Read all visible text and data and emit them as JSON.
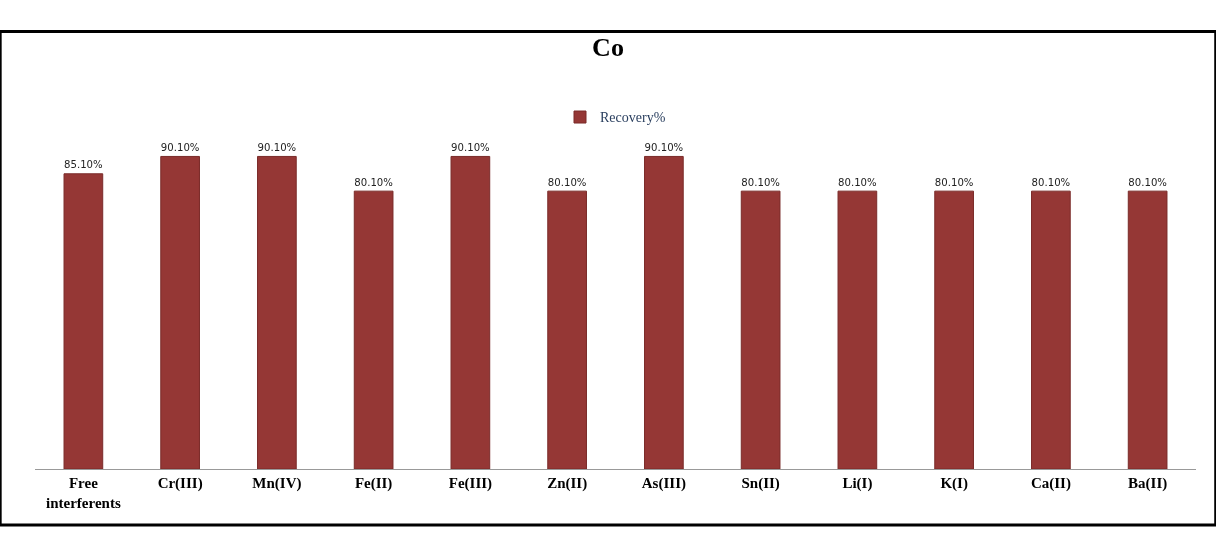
{
  "chart_data": {
    "type": "bar",
    "title": "Co",
    "categories": [
      "Free interferents",
      "Cr(III)",
      "Mn(IV)",
      "Fe(II)",
      "Fe(III)",
      "Zn(II)",
      "As(III)",
      "Sn(II)",
      "Li(I)",
      "K(I)",
      "Ca(II)",
      "Ba(II)"
    ],
    "series": [
      {
        "name": "Recovery%",
        "color": "#953735",
        "values": [
          85.1,
          90.1,
          90.1,
          80.1,
          90.1,
          80.1,
          90.1,
          80.1,
          80.1,
          80.1,
          80.1,
          80.1
        ],
        "value_labels": [
          "85.10%",
          "90.10%",
          "90.10%",
          "80.10%",
          "90.10%",
          "80.10%",
          "90.10%",
          "80.10%",
          "80.10%",
          "80.10%",
          "80.10%",
          "80.10%"
        ]
      }
    ],
    "tick_labels": "x",
    "legend": "top"
  }
}
